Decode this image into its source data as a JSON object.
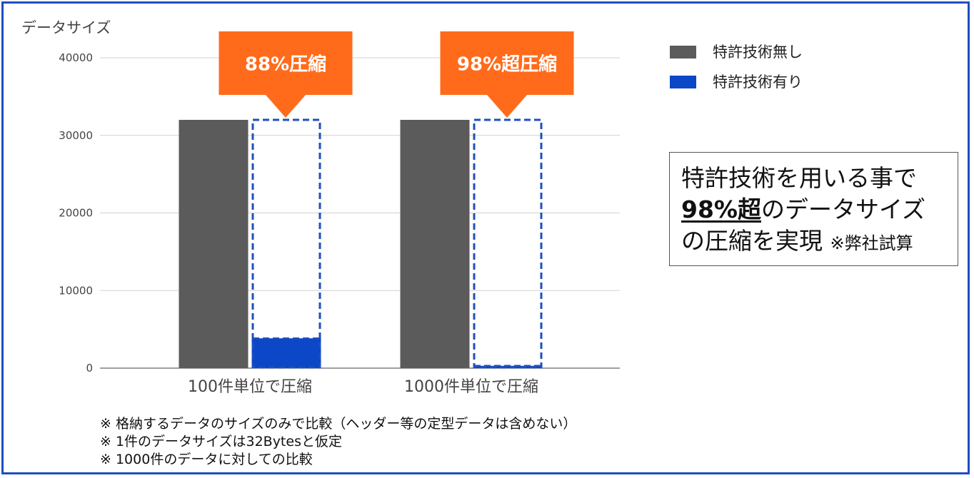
{
  "chart_data": {
    "type": "bar",
    "ylabel": "データサイズ",
    "ylim": [
      0,
      40000
    ],
    "yticks": [
      0,
      10000,
      20000,
      30000,
      40000
    ],
    "categories": [
      "100件単位で圧縮",
      "1000件単位で圧縮"
    ],
    "series": [
      {
        "name": "特許技術無し",
        "values": [
          32000,
          32000
        ],
        "color": "#5b5b5b"
      },
      {
        "name": "特許技術有り",
        "values": [
          3840,
          300
        ],
        "color": "#0b47c7"
      }
    ],
    "reference_outline_value": 32000,
    "outline_color": "#1f4fbf",
    "callouts": [
      {
        "text": "88%圧縮",
        "category_index": 0
      },
      {
        "text": "98%超圧縮",
        "category_index": 1
      }
    ],
    "callout_color": "#ff6b1a",
    "grid": true,
    "legend_position": "top-right"
  },
  "summary": {
    "line1": "特許技術を用いる事で",
    "line2_em": "98%超",
    "line2_rest": "のデータサイズ",
    "line3": "の圧縮を実現",
    "line3_note": "※弊社試算"
  },
  "notes": [
    "※ 格納するデータのサイズのみで比較（ヘッダー等の定型データは含めない）",
    "※ 1件のデータサイズは32Bytesと仮定",
    "※ 1000件のデータに対しての比較"
  ]
}
